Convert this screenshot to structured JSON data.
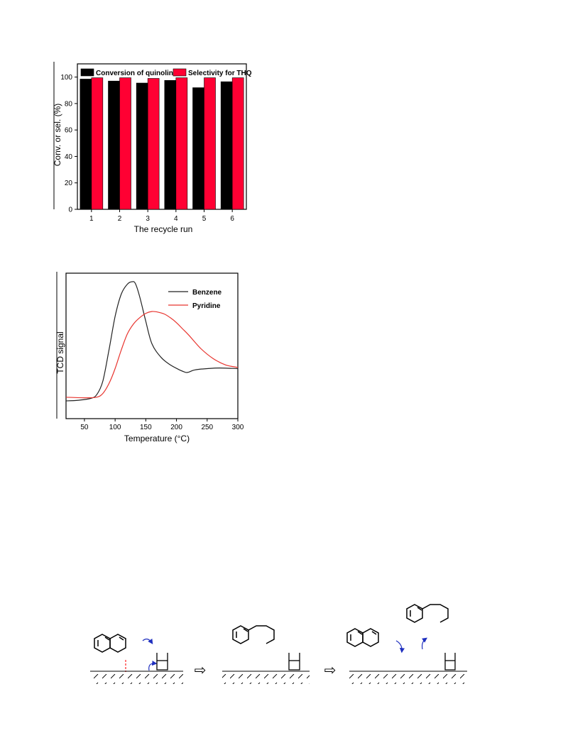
{
  "chart_data": [
    {
      "type": "bar",
      "categories": [
        "1",
        "2",
        "3",
        "4",
        "5",
        "6"
      ],
      "series": [
        {
          "name": "Conversion of quinoline",
          "color": "#000000",
          "values": [
            98.5,
            97,
            95.5,
            97.5,
            92,
            96.5
          ]
        },
        {
          "name": "Selectivity for THQ",
          "color": "#ff0033",
          "values": [
            99.5,
            99.5,
            99,
            99.5,
            99.5,
            99.5
          ]
        }
      ],
      "xlabel": "The recycle run",
      "ylabel": "Conv. or sel. (%)",
      "ylim": [
        0,
        110
      ],
      "yticks": [
        "0",
        "20",
        "40",
        "60",
        "80",
        "100"
      ],
      "legend": "top"
    },
    {
      "type": "line",
      "xlabel": "Temperature (°C)",
      "ylabel": "TCD signal",
      "xlim": [
        20,
        300
      ],
      "ylim": [
        0,
        1
      ],
      "xticks": [
        "50",
        "100",
        "150",
        "200",
        "250",
        "300"
      ],
      "legend": "top-right",
      "series": [
        {
          "name": "Benzene",
          "color": "#222222",
          "x": [
            20,
            40,
            60,
            70,
            80,
            90,
            100,
            110,
            120,
            128,
            133,
            140,
            150,
            160,
            175,
            190,
            205,
            215,
            220,
            230,
            250,
            270,
            300
          ],
          "y": [
            0.04,
            0.045,
            0.06,
            0.09,
            0.2,
            0.45,
            0.72,
            0.9,
            0.98,
            1.0,
            0.985,
            0.88,
            0.68,
            0.5,
            0.39,
            0.33,
            0.29,
            0.27,
            0.272,
            0.29,
            0.3,
            0.305,
            0.3
          ]
        },
        {
          "name": "Pyridine",
          "color": "#e8342e",
          "x": [
            20,
            50,
            70,
            80,
            90,
            100,
            110,
            120,
            130,
            140,
            150,
            160,
            170,
            180,
            190,
            200,
            210,
            220,
            240,
            260,
            280,
            300
          ],
          "y": [
            0.07,
            0.065,
            0.07,
            0.1,
            0.18,
            0.3,
            0.45,
            0.58,
            0.66,
            0.71,
            0.745,
            0.76,
            0.755,
            0.74,
            0.71,
            0.67,
            0.62,
            0.57,
            0.46,
            0.38,
            0.33,
            0.31
          ]
        }
      ]
    }
  ],
  "scheme": {
    "arrow_glyph": "⇨"
  }
}
